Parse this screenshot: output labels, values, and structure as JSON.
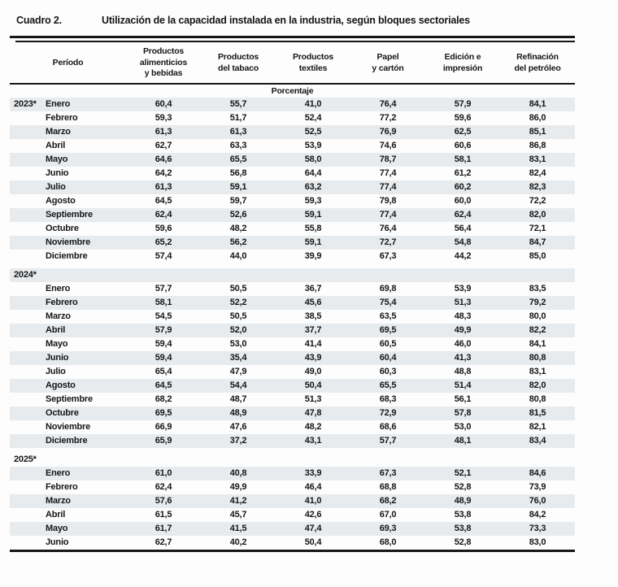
{
  "header": {
    "label": "Cuadro 2.",
    "title": "Utilización de la capacidad instalada en la industria, según bloques sectoriales"
  },
  "colors": {
    "stripe": "#e8ebed",
    "rule": "#161616"
  },
  "table": {
    "period_header": "Período",
    "sector_headers": [
      [
        "Productos",
        "alimenticios",
        "y bebidas"
      ],
      [
        "Productos",
        "del tabaco"
      ],
      [
        "Productos",
        "textiles"
      ],
      [
        "Papel",
        "y cartón"
      ],
      [
        "Edición e",
        "impresión"
      ],
      [
        "Refinación",
        "del petróleo"
      ]
    ],
    "unit_label": "Porcentaje",
    "groups": [
      {
        "year": "2023*",
        "year_inline": true,
        "rows": [
          [
            "Enero",
            "60,4",
            "55,7",
            "41,0",
            "76,4",
            "57,9",
            "84,1"
          ],
          [
            "Febrero",
            "59,3",
            "51,7",
            "52,4",
            "77,2",
            "59,6",
            "86,0"
          ],
          [
            "Marzo",
            "61,3",
            "61,3",
            "52,5",
            "76,9",
            "62,5",
            "85,1"
          ],
          [
            "Abril",
            "62,7",
            "63,3",
            "53,9",
            "74,6",
            "60,6",
            "86,8"
          ],
          [
            "Mayo",
            "64,6",
            "65,5",
            "58,0",
            "78,7",
            "58,1",
            "83,1"
          ],
          [
            "Junio",
            "64,2",
            "56,8",
            "64,4",
            "77,4",
            "61,2",
            "82,4"
          ],
          [
            "Julio",
            "61,3",
            "59,1",
            "63,2",
            "77,4",
            "60,2",
            "82,3"
          ],
          [
            "Agosto",
            "64,5",
            "59,7",
            "59,3",
            "79,8",
            "60,0",
            "72,2"
          ],
          [
            "Septiembre",
            "62,4",
            "52,6",
            "59,1",
            "77,4",
            "62,4",
            "82,0"
          ],
          [
            "Octubre",
            "59,6",
            "48,2",
            "55,8",
            "76,4",
            "56,4",
            "72,1"
          ],
          [
            "Noviembre",
            "65,2",
            "56,2",
            "59,1",
            "72,7",
            "54,8",
            "84,7"
          ],
          [
            "Diciembre",
            "57,4",
            "44,0",
            "39,9",
            "67,3",
            "44,2",
            "85,0"
          ]
        ]
      },
      {
        "year": "2024*",
        "year_inline": false,
        "rows": [
          [
            "Enero",
            "57,7",
            "50,5",
            "36,7",
            "69,8",
            "53,9",
            "83,5"
          ],
          [
            "Febrero",
            "58,1",
            "52,2",
            "45,6",
            "75,4",
            "51,3",
            "79,2"
          ],
          [
            "Marzo",
            "54,5",
            "50,5",
            "38,5",
            "63,5",
            "48,3",
            "80,0"
          ],
          [
            "Abril",
            "57,9",
            "52,0",
            "37,7",
            "69,5",
            "49,9",
            "82,2"
          ],
          [
            "Mayo",
            "59,4",
            "53,0",
            "41,4",
            "60,5",
            "46,0",
            "84,1"
          ],
          [
            "Junio",
            "59,4",
            "35,4",
            "43,9",
            "60,4",
            "41,3",
            "80,8"
          ],
          [
            "Julio",
            "65,4",
            "47,9",
            "49,0",
            "60,3",
            "48,8",
            "83,1"
          ],
          [
            "Agosto",
            "64,5",
            "54,4",
            "50,4",
            "65,5",
            "51,4",
            "82,0"
          ],
          [
            "Septiembre",
            "68,2",
            "48,7",
            "51,3",
            "68,3",
            "56,1",
            "80,8"
          ],
          [
            "Octubre",
            "69,5",
            "48,9",
            "47,8",
            "72,9",
            "57,8",
            "81,5"
          ],
          [
            "Noviembre",
            "66,9",
            "47,6",
            "48,2",
            "68,6",
            "53,0",
            "82,1"
          ],
          [
            "Diciembre",
            "65,9",
            "37,2",
            "43,1",
            "57,7",
            "48,1",
            "83,4"
          ]
        ]
      },
      {
        "year": "2025*",
        "year_inline": false,
        "rows": [
          [
            "Enero",
            "61,0",
            "40,8",
            "33,9",
            "67,3",
            "52,1",
            "84,6"
          ],
          [
            "Febrero",
            "62,4",
            "49,9",
            "46,4",
            "68,8",
            "52,8",
            "73,9"
          ],
          [
            "Marzo",
            "57,6",
            "41,2",
            "41,0",
            "68,2",
            "48,9",
            "76,0"
          ],
          [
            "Abril",
            "61,5",
            "45,7",
            "42,6",
            "67,0",
            "53,8",
            "84,2"
          ],
          [
            "Mayo",
            "61,7",
            "41,5",
            "47,4",
            "69,3",
            "53,8",
            "73,3"
          ],
          [
            "Junio",
            "62,7",
            "40,2",
            "50,4",
            "68,0",
            "52,8",
            "83,0"
          ]
        ]
      }
    ]
  }
}
